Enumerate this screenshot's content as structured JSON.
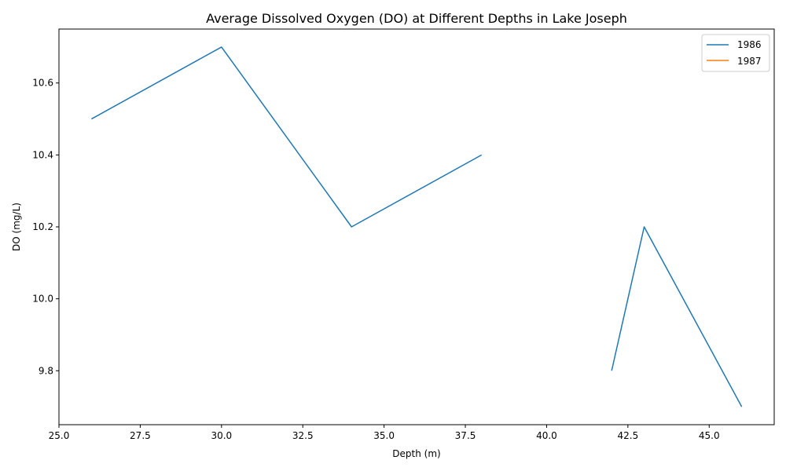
{
  "chart_data": {
    "type": "line",
    "title": "Average Dissolved Oxygen (DO) at Different Depths in Lake Joseph",
    "xlabel": "Depth (m)",
    "ylabel": "DO (mg/L)",
    "xlim": [
      25.0,
      47.0
    ],
    "ylim": [
      9.65,
      10.75
    ],
    "xticks": [
      "25.0",
      "27.5",
      "30.0",
      "32.5",
      "35.0",
      "37.5",
      "40.0",
      "42.5",
      "45.0"
    ],
    "yticks": [
      "9.8",
      "10.0",
      "10.2",
      "10.4",
      "10.6"
    ],
    "grid": false,
    "legend_position": "top-right",
    "series": [
      {
        "name": "1986",
        "color": "#1f77b4",
        "segments": [
          [
            [
              26,
              10.5
            ],
            [
              30,
              10.7
            ],
            [
              34,
              10.2
            ],
            [
              38,
              10.4
            ]
          ],
          [
            [
              42,
              9.8
            ],
            [
              43,
              10.2
            ],
            [
              46,
              9.7
            ]
          ]
        ]
      },
      {
        "name": "1987",
        "color": "#ff7f0e",
        "segments": []
      }
    ]
  }
}
